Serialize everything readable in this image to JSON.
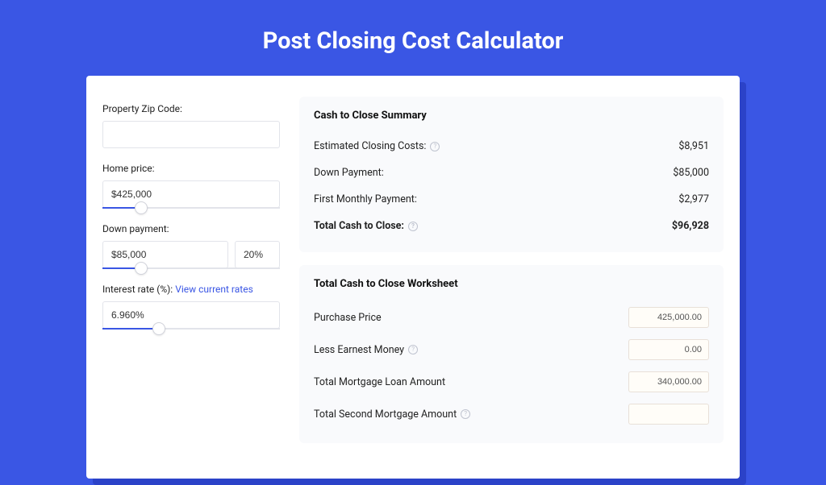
{
  "title": "Post Closing Cost Calculator",
  "colors": {
    "page_bg": "#3a56e4",
    "card_bg": "#ffffff",
    "panel_bg": "#f9fafc",
    "accent": "#3a56e4",
    "border": "#e2e4ea",
    "shadow": "#2b42c8"
  },
  "form": {
    "zip": {
      "label": "Property Zip Code:",
      "value": ""
    },
    "home_price": {
      "label": "Home price:",
      "value": "$425,000",
      "slider_pct": 22
    },
    "down_payment": {
      "label": "Down payment:",
      "value": "$85,000",
      "pct": "20%",
      "slider_pct": 22
    },
    "interest_rate": {
      "label": "Interest rate (%): ",
      "link_text": "View current rates",
      "value": "6.960%",
      "slider_pct": 32
    }
  },
  "summary": {
    "title": "Cash to Close Summary",
    "rows": [
      {
        "label": "Estimated Closing Costs:",
        "help": true,
        "value": "$8,951",
        "bold": false
      },
      {
        "label": "Down Payment:",
        "help": false,
        "value": "$85,000",
        "bold": false
      },
      {
        "label": "First Monthly Payment:",
        "help": false,
        "value": "$2,977",
        "bold": false
      },
      {
        "label": "Total Cash to Close:",
        "help": true,
        "value": "$96,928",
        "bold": true
      }
    ]
  },
  "worksheet": {
    "title": "Total Cash to Close Worksheet",
    "rows": [
      {
        "label": "Purchase Price",
        "help": false,
        "value": "425,000.00"
      },
      {
        "label": "Less Earnest Money",
        "help": true,
        "value": "0.00"
      },
      {
        "label": "Total Mortgage Loan Amount",
        "help": false,
        "value": "340,000.00"
      },
      {
        "label": "Total Second Mortgage Amount",
        "help": true,
        "value": ""
      }
    ]
  }
}
